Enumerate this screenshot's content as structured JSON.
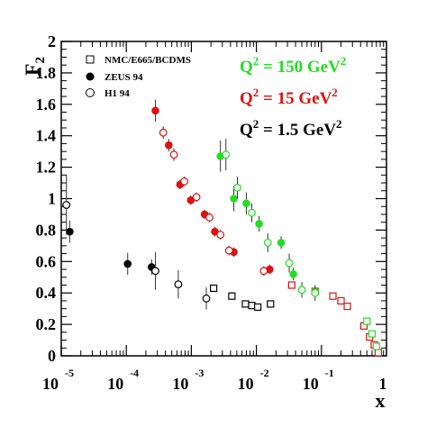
{
  "chart_data": {
    "type": "scatter",
    "xscale": "log",
    "xlim": [
      1e-05,
      1
    ],
    "ylim": [
      0,
      2
    ],
    "xlabel": "x",
    "ylabel": "F2",
    "xticks": [
      {
        "value": 1e-05,
        "base": "10",
        "exp": "-5"
      },
      {
        "value": 0.0001,
        "base": "10",
        "exp": "-4"
      },
      {
        "value": 0.001,
        "base": "10",
        "exp": "-3"
      },
      {
        "value": 0.01,
        "base": "10",
        "exp": "-2"
      },
      {
        "value": 0.1,
        "base": "10",
        "exp": "-1"
      },
      {
        "value": 1,
        "base": "1",
        "exp": ""
      }
    ],
    "yticks": [
      {
        "value": 0,
        "label": "0"
      },
      {
        "value": 0.2,
        "label": "0.2"
      },
      {
        "value": 0.4,
        "label": "0.4"
      },
      {
        "value": 0.6,
        "label": "0.6"
      },
      {
        "value": 0.8,
        "label": "0.8"
      },
      {
        "value": 1,
        "label": "1"
      },
      {
        "value": 1.2,
        "label": "1.2"
      },
      {
        "value": 1.4,
        "label": "1.4"
      },
      {
        "value": 1.6,
        "label": "1.6"
      },
      {
        "value": 1.8,
        "label": "1.8"
      },
      {
        "value": 2,
        "label": "2"
      }
    ],
    "legend": {
      "placement": "top-left",
      "entries": [
        {
          "label": "NMC/E665/BCDMS",
          "marker": "open-square"
        },
        {
          "label": "ZEUS 94",
          "marker": "filled-circle"
        },
        {
          "label": "H1 94",
          "marker": "open-circle"
        }
      ]
    },
    "q2_labels": [
      {
        "text": "Q",
        "sup": "2",
        "rest": " = 150 GeV",
        "sup2": "2",
        "color": "#22dd22"
      },
      {
        "text": "Q",
        "sup": "2",
        "rest": " = 15 GeV",
        "sup2": "2",
        "color": "#dd1111"
      },
      {
        "text": "Q",
        "sup": "2",
        "rest": " = 1.5 GeV",
        "sup2": "2",
        "color": "#000000"
      }
    ],
    "series": [
      {
        "experiment": "NMC/E665/BCDMS",
        "q2": "1.5",
        "color": "#000000",
        "marker": "open-square",
        "points": [
          {
            "x": 0.0022,
            "y": 0.43,
            "err": 0.02
          },
          {
            "x": 0.0042,
            "y": 0.38,
            "err": 0.025
          },
          {
            "x": 0.0068,
            "y": 0.33,
            "err": 0.02
          },
          {
            "x": 0.0085,
            "y": 0.32,
            "err": 0.02
          },
          {
            "x": 0.0105,
            "y": 0.31,
            "err": 0.02
          },
          {
            "x": 0.0165,
            "y": 0.33,
            "err": 0.02
          }
        ]
      },
      {
        "experiment": "ZEUS 94",
        "q2": "1.5",
        "color": "#000000",
        "marker": "filled-circle",
        "points": [
          {
            "x": 1.35e-05,
            "y": 0.79,
            "err": 0.07
          },
          {
            "x": 0.000105,
            "y": 0.585,
            "err": 0.07
          },
          {
            "x": 0.000245,
            "y": 0.565,
            "err": 0.05
          }
        ]
      },
      {
        "experiment": "H1 94",
        "q2": "1.5",
        "color": "#000000",
        "marker": "open-circle",
        "points": [
          {
            "x": 1.2e-05,
            "y": 0.96,
            "err": 0.19
          },
          {
            "x": 0.00028,
            "y": 0.54,
            "err": 0.12
          },
          {
            "x": 0.00063,
            "y": 0.455,
            "err": 0.09
          },
          {
            "x": 0.0017,
            "y": 0.365,
            "err": 0.07
          }
        ]
      },
      {
        "experiment": "ZEUS 94",
        "q2": "15",
        "color": "#dd1111",
        "marker": "filled-circle",
        "points": [
          {
            "x": 0.00028,
            "y": 1.56,
            "err": 0.07
          },
          {
            "x": 0.00045,
            "y": 1.34,
            "err": 0.04
          },
          {
            "x": 0.00067,
            "y": 1.09,
            "err": 0.03
          },
          {
            "x": 0.00098,
            "y": 0.99,
            "err": 0.03
          },
          {
            "x": 0.0016,
            "y": 0.9,
            "err": 0.03
          },
          {
            "x": 0.0023,
            "y": 0.79,
            "err": 0.03
          },
          {
            "x": 0.0045,
            "y": 0.66,
            "err": 0.03
          },
          {
            "x": 0.016,
            "y": 0.55,
            "err": 0.03
          }
        ]
      },
      {
        "experiment": "H1 94",
        "q2": "15",
        "color": "#dd1111",
        "marker": "open-circle",
        "points": [
          {
            "x": 0.00037,
            "y": 1.42,
            "err": 0.04
          },
          {
            "x": 0.00054,
            "y": 1.28,
            "err": 0.04
          },
          {
            "x": 0.00078,
            "y": 1.11,
            "err": 0.03
          },
          {
            "x": 0.0012,
            "y": 1.01,
            "err": 0.03
          },
          {
            "x": 0.0019,
            "y": 0.88,
            "err": 0.03
          },
          {
            "x": 0.0028,
            "y": 0.77,
            "err": 0.03
          },
          {
            "x": 0.0038,
            "y": 0.67,
            "err": 0.03
          },
          {
            "x": 0.013,
            "y": 0.54,
            "err": 0.03
          }
        ]
      },
      {
        "experiment": "NMC/E665/BCDMS",
        "q2": "15",
        "color": "#dd1111",
        "marker": "open-square",
        "points": [
          {
            "x": 0.035,
            "y": 0.45,
            "err": 0.02
          },
          {
            "x": 0.08,
            "y": 0.41,
            "err": 0.015
          },
          {
            "x": 0.15,
            "y": 0.38,
            "err": 0.015
          },
          {
            "x": 0.2,
            "y": 0.35,
            "err": 0.015
          },
          {
            "x": 0.25,
            "y": 0.315,
            "err": 0.015
          },
          {
            "x": 0.45,
            "y": 0.19,
            "err": 0.015
          },
          {
            "x": 0.55,
            "y": 0.12,
            "err": 0.01
          },
          {
            "x": 0.65,
            "y": 0.07,
            "err": 0.01
          },
          {
            "x": 0.75,
            "y": 0.02,
            "err": 0.01
          }
        ]
      },
      {
        "experiment": "ZEUS 94",
        "q2": "150",
        "color": "#22dd22",
        "marker": "filled-circle",
        "points": [
          {
            "x": 0.0028,
            "y": 1.27,
            "err": 0.1
          },
          {
            "x": 0.0045,
            "y": 1.0,
            "err": 0.08
          },
          {
            "x": 0.007,
            "y": 0.97,
            "err": 0.07
          },
          {
            "x": 0.011,
            "y": 0.84,
            "err": 0.05
          },
          {
            "x": 0.024,
            "y": 0.72,
            "err": 0.04
          },
          {
            "x": 0.037,
            "y": 0.52,
            "err": 0.04
          },
          {
            "x": 0.08,
            "y": 0.41,
            "err": 0.03
          }
        ]
      },
      {
        "experiment": "H1 94",
        "q2": "150",
        "color": "#22dd22",
        "marker": "open-circle",
        "points": [
          {
            "x": 0.0034,
            "y": 1.28,
            "err": 0.1
          },
          {
            "x": 0.0051,
            "y": 1.07,
            "err": 0.07
          },
          {
            "x": 0.0085,
            "y": 0.91,
            "err": 0.06
          },
          {
            "x": 0.015,
            "y": 0.72,
            "err": 0.06
          },
          {
            "x": 0.032,
            "y": 0.59,
            "err": 0.06
          },
          {
            "x": 0.05,
            "y": 0.42,
            "err": 0.05
          },
          {
            "x": 0.08,
            "y": 0.4,
            "err": 0.05
          }
        ]
      },
      {
        "experiment": "NMC/E665/BCDMS",
        "q2": "150",
        "color": "#22dd22",
        "marker": "open-square",
        "points": [
          {
            "x": 0.5,
            "y": 0.22,
            "err": 0.015
          },
          {
            "x": 0.6,
            "y": 0.14,
            "err": 0.01
          },
          {
            "x": 0.7,
            "y": 0.06,
            "err": 0.01
          }
        ]
      }
    ]
  }
}
